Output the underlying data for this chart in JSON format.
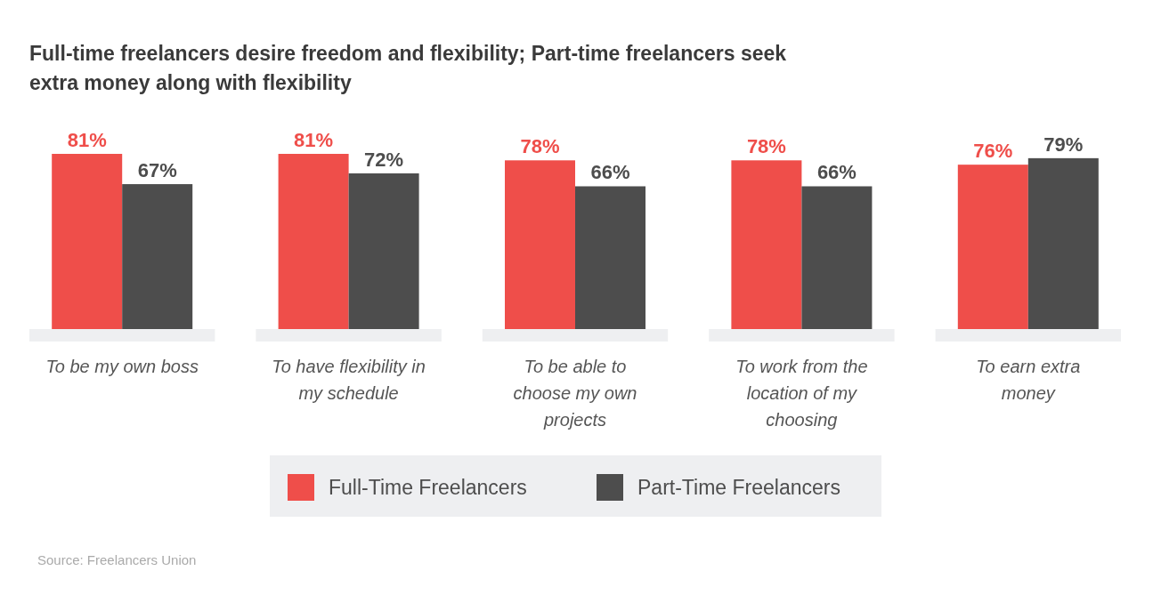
{
  "chart_data": {
    "type": "bar",
    "title": "Full-time freelancers desire freedom and flexibility; Part-time freelancers seek extra money along with flexibility",
    "categories": [
      "To be my own boss",
      "To have flexibility in my schedule",
      "To be able to choose my own projects",
      "To work from the location of my choosing",
      "To earn extra money"
    ],
    "series": [
      {
        "name": "Full-Time Freelancers",
        "color": "#ef4e4a",
        "values": [
          81,
          81,
          78,
          78,
          76
        ],
        "value_labels": [
          "81%",
          "81%",
          "78%",
          "78%",
          "76%"
        ]
      },
      {
        "name": "Part-Time Freelancers",
        "color": "#4d4d4d",
        "values": [
          67,
          72,
          66,
          66,
          79
        ],
        "value_labels": [
          "67%",
          "72%",
          "66%",
          "66%",
          "79%"
        ]
      }
    ],
    "legend": "bottom",
    "annotations": [
      "Source: Freelancers Union"
    ]
  }
}
